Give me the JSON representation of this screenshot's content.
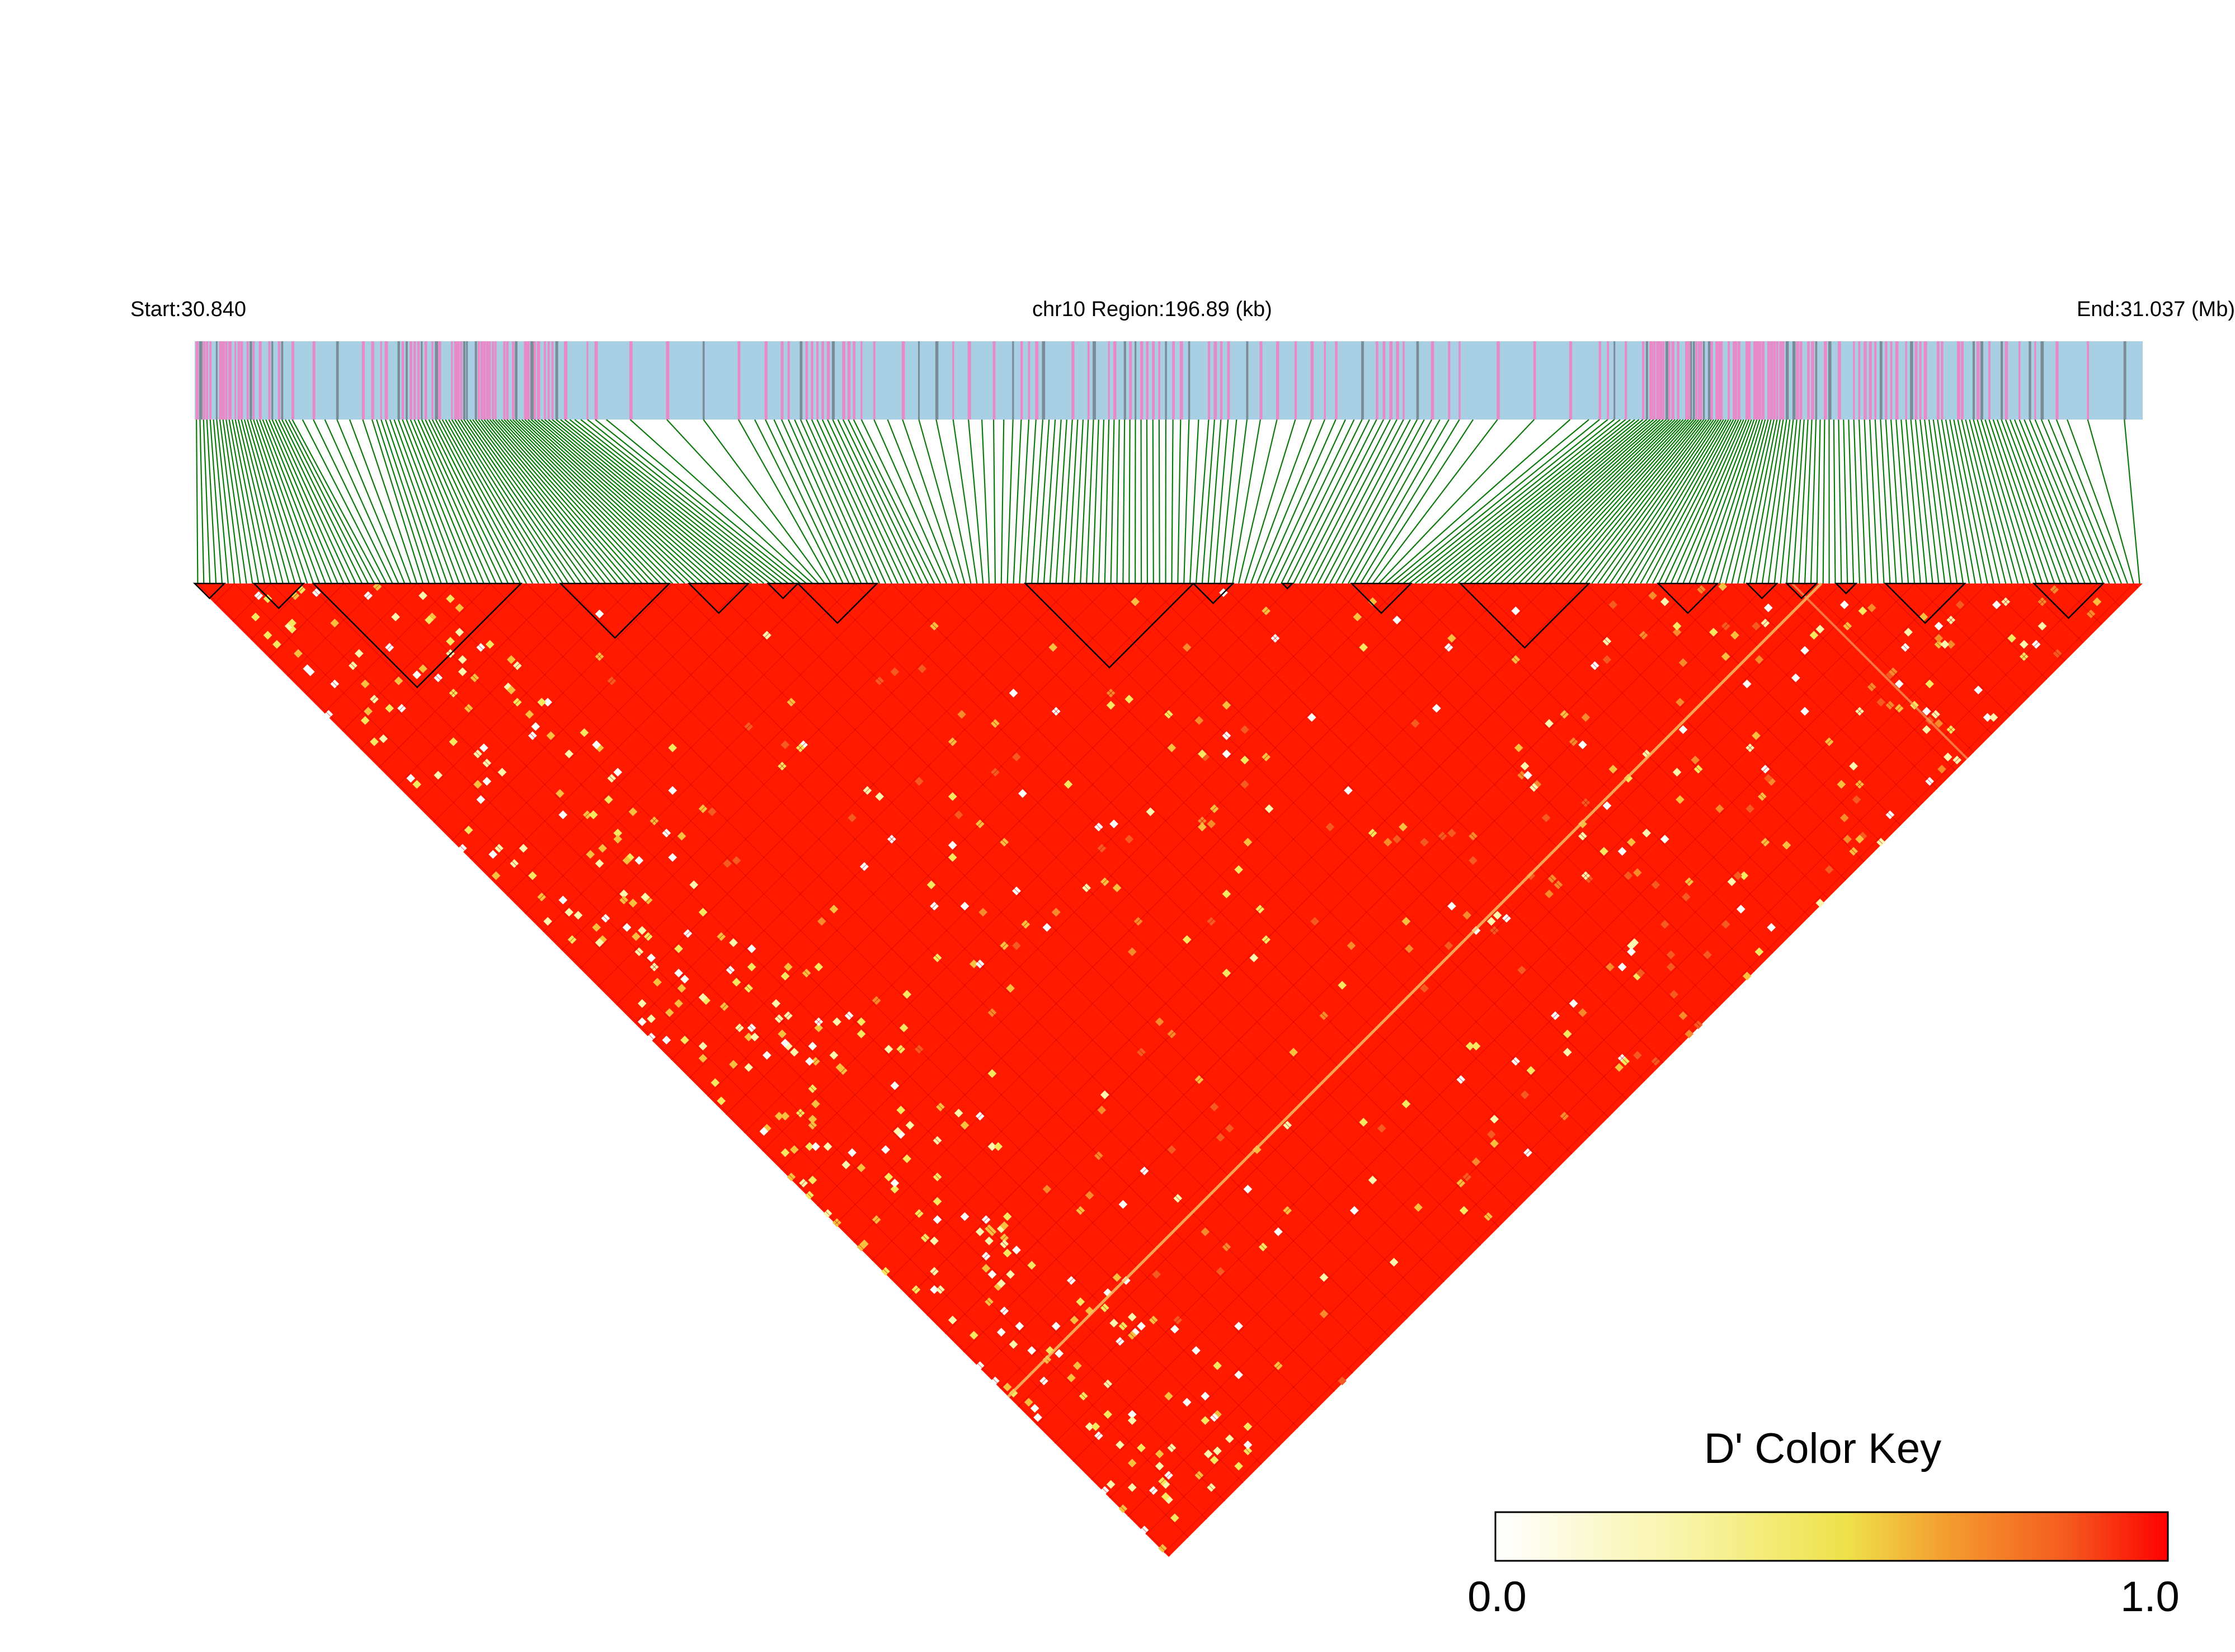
{
  "header": {
    "start_label": "Start:30.840",
    "region_label": "chr10 Region:196.89 (kb)",
    "end_label": "End:31.037 (Mb)"
  },
  "chart_data": {
    "type": "heatmap",
    "subtype": "LD block heatmap (D')",
    "chromosome": "chr10",
    "start_mb": 30.84,
    "end_mb": 31.037,
    "region_kb": 196.89,
    "approx_snp_count": 320,
    "value_range": [
      0.0,
      1.0
    ],
    "description_of_pattern": "Predominantly high D' (0.9-1.0, red) across most SNP pairs; lower values (yellow/white) concentrated along the left diagonal edge and in a band of the lower-right quadrant.",
    "haplotype_blocks_mb": [
      [
        30.84,
        30.843
      ],
      [
        30.846,
        30.851
      ],
      [
        30.852,
        30.873
      ],
      [
        30.877,
        30.888
      ],
      [
        30.89,
        30.896
      ],
      [
        30.898,
        30.901
      ],
      [
        30.901,
        30.909
      ],
      [
        30.924,
        30.941
      ],
      [
        30.941,
        30.945
      ],
      [
        30.95,
        30.951
      ],
      [
        30.957,
        30.963
      ],
      [
        30.968,
        30.981
      ],
      [
        30.988,
        30.994
      ],
      [
        30.997,
        31.0
      ],
      [
        31.001,
        31.004
      ],
      [
        31.006,
        31.008
      ],
      [
        31.011,
        31.019
      ],
      [
        31.026,
        31.033
      ]
    ],
    "color_key": {
      "title": "D' Color Key",
      "min_label": "0.0",
      "max_label": "1.0",
      "colors": [
        "#ffffff",
        "#f8f3a0",
        "#eee24a",
        "#f3a130",
        "#f55a1f",
        "#ff0000"
      ]
    }
  },
  "colors": {
    "snp_bar_base": "#a8cfe4",
    "snp_bar_highlight": "#e88ac8",
    "snp_bar_dark": "#7a8c96",
    "connector_lines": "#0a7a0a",
    "high_ld": "#ff0000"
  }
}
